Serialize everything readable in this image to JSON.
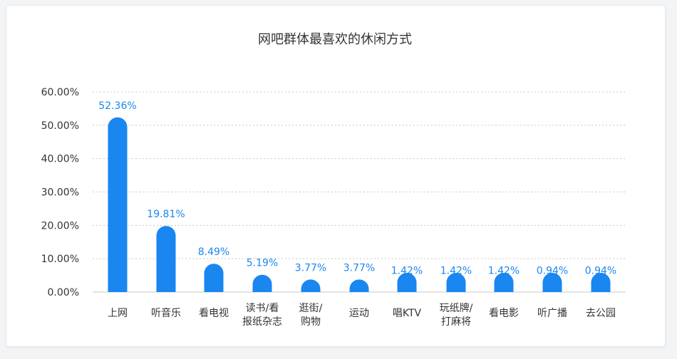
{
  "chart_data": {
    "type": "bar",
    "title": "网吧群体最喜欢的休闲方式",
    "categories": [
      [
        "上网"
      ],
      [
        "听音乐"
      ],
      [
        "看电视"
      ],
      [
        "读书/看",
        "报纸杂志"
      ],
      [
        "逛街/",
        "购物"
      ],
      [
        "运动"
      ],
      [
        "唱KTV"
      ],
      [
        "玩纸牌/",
        "打麻将"
      ],
      [
        "看电影"
      ],
      [
        "听广播"
      ],
      [
        "去公园"
      ]
    ],
    "values": [
      52.36,
      19.81,
      8.49,
      5.19,
      3.77,
      3.77,
      1.42,
      1.42,
      1.42,
      0.94,
      0.94
    ],
    "data_labels": [
      "52.36%",
      "19.81%",
      "8.49%",
      "5.19%",
      "3.77%",
      "3.77%",
      "1.42%",
      "1.42%",
      "1.42%",
      "0.94%",
      "0.94%"
    ],
    "y_ticks": [
      "0.00%",
      "10.00%",
      "20.00%",
      "30.00%",
      "40.00%",
      "50.00%",
      "60.00%"
    ],
    "ylim": [
      0,
      60
    ],
    "grid": true,
    "colors": {
      "bar": "#1a86f0",
      "label": "#1a86f0",
      "grid": "#c8c8c8"
    }
  }
}
